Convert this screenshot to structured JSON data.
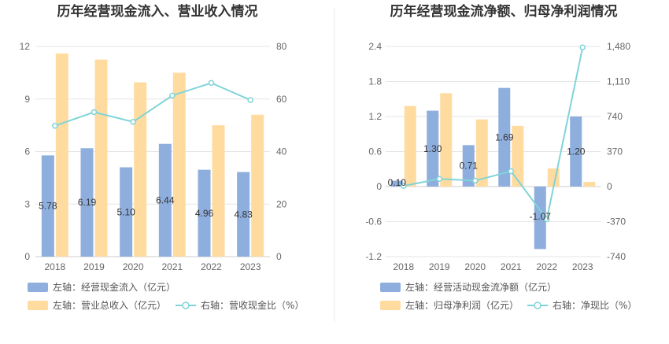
{
  "chart_data": [
    {
      "type": "bar",
      "title": "历年经营现金流入、营业收入情况",
      "categories": [
        "2018",
        "2019",
        "2020",
        "2021",
        "2022",
        "2023"
      ],
      "left_axis": {
        "min": 0,
        "max": 12,
        "ticks": [
          "0",
          "3",
          "6",
          "9",
          "12"
        ],
        "tick_values": [
          0,
          3,
          6,
          9,
          12
        ]
      },
      "right_axis": {
        "min": 0,
        "max": 80,
        "ticks": [
          "0",
          "20",
          "40",
          "60",
          "80"
        ],
        "tick_values": [
          0,
          20,
          40,
          60,
          80
        ]
      },
      "series": [
        {
          "name": "左轴：经营现金流入（亿元）",
          "type": "bar",
          "axis": "left",
          "color": "#8eaede",
          "values": [
            5.78,
            6.19,
            5.1,
            6.44,
            4.96,
            4.83
          ],
          "labels": [
            "5.78",
            "6.19",
            "5.10",
            "6.44",
            "4.96",
            "4.83"
          ]
        },
        {
          "name": "左轴：营业总收入（亿元）",
          "type": "bar",
          "axis": "left",
          "color": "#ffdba0",
          "values": [
            11.6,
            11.25,
            9.95,
            10.5,
            7.5,
            8.1
          ]
        },
        {
          "name": "右轴：营收现金比（%）",
          "type": "line",
          "axis": "right",
          "color": "#80d4d8",
          "values": [
            49.8,
            55.0,
            51.3,
            61.3,
            66.1,
            59.6
          ]
        }
      ]
    },
    {
      "type": "bar",
      "title": "历年经营现金流净额、归母净利润情况",
      "categories": [
        "2018",
        "2019",
        "2020",
        "2021",
        "2022",
        "2023"
      ],
      "left_axis": {
        "min": -1.2,
        "max": 2.4,
        "ticks": [
          "-1.2",
          "-0.6",
          "0",
          "0.6",
          "1.2",
          "1.8",
          "2.4"
        ],
        "tick_values": [
          -1.2,
          -0.6,
          0,
          0.6,
          1.2,
          1.8,
          2.4
        ]
      },
      "right_axis": {
        "min": -740,
        "max": 1480,
        "ticks": [
          "-740",
          "-370",
          "0",
          "370",
          "740",
          "1,110",
          "1,480"
        ],
        "tick_values": [
          -740,
          -370,
          0,
          370,
          740,
          1110,
          1480
        ]
      },
      "series": [
        {
          "name": "左轴：经营活动现金流净额（亿元）",
          "type": "bar",
          "axis": "left",
          "color": "#8eaede",
          "values": [
            0.1,
            1.3,
            0.71,
            1.69,
            -1.07,
            1.2
          ],
          "labels": [
            "0.10",
            "1.30",
            "0.71",
            "1.69",
            "-1.07",
            "1.20"
          ]
        },
        {
          "name": "左轴：归母净利润（亿元）",
          "type": "bar",
          "axis": "left",
          "color": "#ffdba0",
          "values": [
            1.38,
            1.6,
            1.15,
            1.04,
            0.31,
            0.08
          ]
        },
        {
          "name": "右轴：净现比（%）",
          "type": "line",
          "axis": "right",
          "color": "#80d4d8",
          "values": [
            7,
            81,
            62,
            162,
            -345,
            1470
          ]
        }
      ]
    }
  ]
}
